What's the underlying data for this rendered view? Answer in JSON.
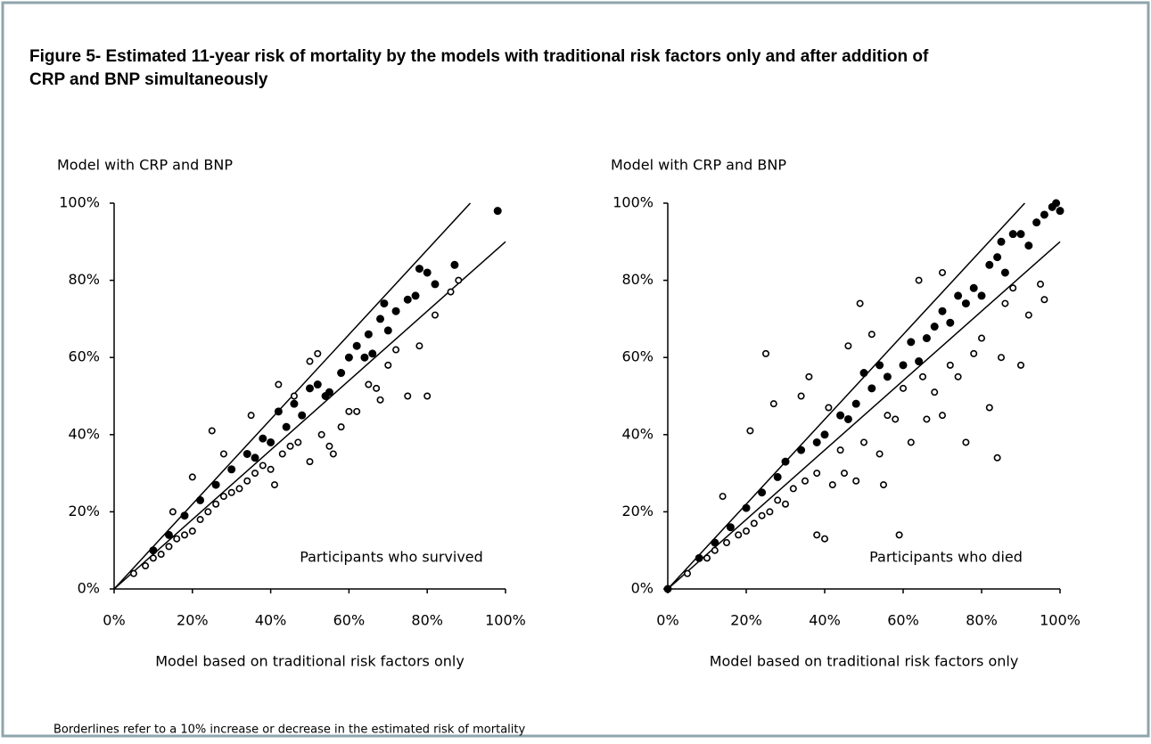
{
  "title_line1": "Figure 5- Estimated 11-year risk of mortality by the models with traditional risk factors only and after addition of",
  "title_line2": "CRP and BNP simultaneously",
  "footnote": "Borderlines refer to a 10% increase or decrease in the estimated  risk of mortality",
  "chart_data": [
    {
      "type": "scatter",
      "ylabel": "Model with CRP and BNP",
      "xlabel": "Model based on traditional risk factors only",
      "annotation": "Participants who survived",
      "xlim": [
        0,
        100
      ],
      "ylim": [
        0,
        100
      ],
      "xticks": [
        {
          "value": 0,
          "label": "0%"
        },
        {
          "value": 20,
          "label": "20%"
        },
        {
          "value": 40,
          "label": "40%"
        },
        {
          "value": 60,
          "label": "60%"
        },
        {
          "value": 80,
          "label": "80%"
        },
        {
          "value": 100,
          "label": "100%"
        }
      ],
      "yticks": [
        {
          "value": 0,
          "label": "0%"
        },
        {
          "value": 20,
          "label": "20%"
        },
        {
          "value": 40,
          "label": "40%"
        },
        {
          "value": 60,
          "label": "60%"
        },
        {
          "value": 80,
          "label": "80%"
        },
        {
          "value": 100,
          "label": "100%"
        }
      ],
      "borderlines": [
        {
          "x": [
            0,
            91
          ],
          "y": [
            0,
            100
          ]
        },
        {
          "x": [
            0,
            100
          ],
          "y": [
            0,
            90
          ]
        }
      ],
      "series": [
        {
          "marker": "open",
          "color": "#000000",
          "x": [
            5,
            8,
            10,
            12,
            14,
            15,
            16,
            18,
            20,
            20,
            22,
            24,
            25,
            26,
            28,
            28,
            30,
            32,
            34,
            35,
            36,
            38,
            40,
            41,
            42,
            43,
            45,
            46,
            47,
            50,
            50,
            52,
            53,
            55,
            56,
            58,
            60,
            62,
            65,
            67,
            68,
            70,
            72,
            75,
            78,
            80,
            82,
            86,
            88
          ],
          "y": [
            4,
            6,
            8,
            9,
            11,
            20,
            13,
            14,
            15,
            29,
            18,
            20,
            41,
            22,
            24,
            35,
            25,
            26,
            28,
            45,
            30,
            32,
            31,
            27,
            53,
            35,
            37,
            50,
            38,
            33,
            59,
            61,
            40,
            37,
            35,
            42,
            46,
            46,
            53,
            52,
            49,
            58,
            62,
            50,
            63,
            50,
            71,
            77,
            80
          ]
        },
        {
          "marker": "filled",
          "color": "#000000",
          "x": [
            10,
            14,
            18,
            22,
            26,
            30,
            34,
            36,
            38,
            40,
            42,
            44,
            46,
            48,
            50,
            52,
            54,
            55,
            58,
            60,
            62,
            64,
            65,
            66,
            68,
            69,
            70,
            72,
            75,
            77,
            78,
            80,
            82,
            87,
            98
          ],
          "y": [
            10,
            14,
            19,
            23,
            27,
            31,
            35,
            34,
            39,
            38,
            46,
            42,
            48,
            45,
            52,
            53,
            50,
            51,
            56,
            60,
            63,
            60,
            66,
            61,
            70,
            74,
            67,
            72,
            75,
            76,
            83,
            82,
            79,
            84,
            98
          ]
        }
      ]
    },
    {
      "type": "scatter",
      "ylabel": "Model with CRP and BNP",
      "xlabel": "Model based on traditional risk factors only",
      "annotation": "Participants who died",
      "xlim": [
        0,
        100
      ],
      "ylim": [
        0,
        100
      ],
      "xticks": [
        {
          "value": 0,
          "label": "0%"
        },
        {
          "value": 20,
          "label": "20%"
        },
        {
          "value": 40,
          "label": "40%"
        },
        {
          "value": 60,
          "label": "60%"
        },
        {
          "value": 80,
          "label": "80%"
        },
        {
          "value": 100,
          "label": "100%"
        }
      ],
      "yticks": [
        {
          "value": 0,
          "label": "0%"
        },
        {
          "value": 20,
          "label": "20%"
        },
        {
          "value": 40,
          "label": "40%"
        },
        {
          "value": 60,
          "label": "60%"
        },
        {
          "value": 80,
          "label": "80%"
        },
        {
          "value": 100,
          "label": "100%"
        }
      ],
      "borderlines": [
        {
          "x": [
            0,
            91
          ],
          "y": [
            0,
            100
          ]
        },
        {
          "x": [
            0,
            100
          ],
          "y": [
            0,
            90
          ]
        }
      ],
      "series": [
        {
          "marker": "open",
          "color": "#000000",
          "x": [
            5,
            10,
            12,
            14,
            15,
            18,
            20,
            21,
            22,
            24,
            25,
            26,
            27,
            28,
            30,
            32,
            34,
            35,
            36,
            38,
            38,
            40,
            41,
            42,
            44,
            45,
            46,
            48,
            49,
            50,
            52,
            54,
            55,
            56,
            58,
            59,
            60,
            62,
            64,
            65,
            66,
            68,
            70,
            70,
            72,
            74,
            76,
            78,
            80,
            82,
            84,
            85,
            86,
            88,
            90,
            92,
            95,
            96
          ],
          "y": [
            4,
            8,
            10,
            24,
            12,
            14,
            15,
            41,
            17,
            19,
            61,
            20,
            48,
            23,
            22,
            26,
            50,
            28,
            55,
            14,
            30,
            13,
            47,
            27,
            36,
            30,
            63,
            28,
            74,
            38,
            66,
            35,
            27,
            45,
            44,
            14,
            52,
            38,
            80,
            55,
            44,
            51,
            45,
            82,
            58,
            55,
            38,
            61,
            65,
            47,
            34,
            60,
            74,
            78,
            58,
            71,
            79,
            75
          ]
        },
        {
          "marker": "filled",
          "color": "#000000",
          "x": [
            0,
            8,
            12,
            16,
            20,
            24,
            28,
            30,
            34,
            38,
            40,
            44,
            46,
            48,
            50,
            52,
            54,
            56,
            60,
            62,
            64,
            66,
            68,
            70,
            72,
            74,
            76,
            78,
            80,
            82,
            84,
            85,
            86,
            88,
            90,
            92,
            94,
            96,
            98,
            99,
            100
          ],
          "y": [
            0,
            8,
            12,
            16,
            21,
            25,
            29,
            33,
            36,
            38,
            40,
            45,
            44,
            48,
            56,
            52,
            58,
            55,
            58,
            64,
            59,
            65,
            68,
            72,
            69,
            76,
            74,
            78,
            76,
            84,
            86,
            90,
            82,
            92,
            92,
            89,
            95,
            97,
            99,
            100,
            98
          ]
        }
      ]
    }
  ]
}
